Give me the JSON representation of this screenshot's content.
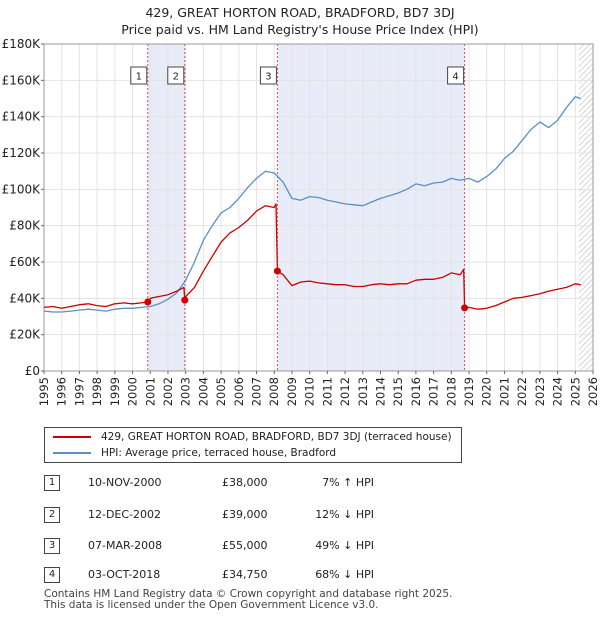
{
  "title_line1": "429, GREAT HORTON ROAD, BRADFORD, BD7 3DJ",
  "title_line2": "Price paid vs. HM Land Registry's House Price Index (HPI)",
  "colors": {
    "property": "#cc0000",
    "hpi": "#5b8fc7",
    "shade": "#e8ecf8",
    "marker_line": "#d9534f"
  },
  "chart_data": {
    "type": "line",
    "xlim": [
      1995,
      2026
    ],
    "ylim": [
      0,
      180000
    ],
    "y_ticks": [
      0,
      20000,
      40000,
      60000,
      80000,
      100000,
      120000,
      140000,
      160000,
      180000
    ],
    "y_tick_labels": [
      "£0",
      "£20K",
      "£40K",
      "£60K",
      "£80K",
      "£100K",
      "£120K",
      "£140K",
      "£160K",
      "£180K"
    ],
    "x_ticks": [
      1995,
      1996,
      1997,
      1998,
      1999,
      2000,
      2001,
      2002,
      2003,
      2004,
      2005,
      2006,
      2007,
      2008,
      2009,
      2010,
      2011,
      2012,
      2013,
      2014,
      2015,
      2016,
      2017,
      2018,
      2019,
      2020,
      2021,
      2022,
      2023,
      2024,
      2025,
      2026
    ],
    "hatch_from": 2025.2,
    "shaded_spans": [
      [
        2000.86,
        2002.95
      ],
      [
        2008.18,
        2018.75
      ]
    ],
    "sales": [
      {
        "label": "1",
        "x": 2000.86,
        "y": 38000
      },
      {
        "label": "2",
        "x": 2002.95,
        "y": 39000
      },
      {
        "label": "3",
        "x": 2008.18,
        "y": 55000
      },
      {
        "label": "4",
        "x": 2018.75,
        "y": 34750
      }
    ],
    "series": [
      {
        "name": "429, GREAT HORTON ROAD, BRADFORD, BD7 3DJ (terraced house)",
        "x": [
          1995.0,
          1995.5,
          1996.0,
          1996.5,
          1997.0,
          1997.5,
          1998.0,
          1998.5,
          1999.0,
          1999.5,
          2000.0,
          2000.5,
          2000.86,
          2001.0,
          2001.5,
          2002.0,
          2002.5,
          2002.9,
          2002.95,
          2003.0,
          2003.5,
          2004.0,
          2004.5,
          2005.0,
          2005.5,
          2006.0,
          2006.5,
          2007.0,
          2007.5,
          2008.0,
          2008.1,
          2008.18,
          2008.5,
          2009.0,
          2009.5,
          2010.0,
          2010.5,
          2011.0,
          2011.5,
          2012.0,
          2012.5,
          2013.0,
          2013.5,
          2014.0,
          2014.5,
          2015.0,
          2015.5,
          2016.0,
          2016.5,
          2017.0,
          2017.5,
          2018.0,
          2018.5,
          2018.7,
          2018.75,
          2019.0,
          2019.5,
          2020.0,
          2020.5,
          2021.0,
          2021.5,
          2022.0,
          2022.5,
          2023.0,
          2023.5,
          2024.0,
          2024.5,
          2025.0,
          2025.3
        ],
        "y": [
          35000,
          35500,
          34500,
          35500,
          36500,
          37000,
          36000,
          35500,
          37000,
          37500,
          37000,
          37500,
          38000,
          40000,
          41000,
          42000,
          44000,
          46000,
          39000,
          41000,
          46000,
          55000,
          63000,
          71000,
          76000,
          79000,
          83000,
          88000,
          91000,
          90000,
          92000,
          55000,
          53000,
          47000,
          49000,
          49500,
          48500,
          48000,
          47500,
          47500,
          46500,
          46500,
          47500,
          48000,
          47500,
          48000,
          48000,
          50000,
          50500,
          50500,
          51500,
          54000,
          53000,
          56000,
          34750,
          35000,
          34000,
          34500,
          36000,
          38000,
          40000,
          40500,
          41500,
          42500,
          44000,
          45000,
          46000,
          48000,
          47500
        ]
      },
      {
        "name": "HPI: Average price, terraced house, Bradford",
        "x": [
          1995.0,
          1995.5,
          1996.0,
          1996.5,
          1997.0,
          1997.5,
          1998.0,
          1998.5,
          1999.0,
          1999.5,
          2000.0,
          2000.5,
          2001.0,
          2001.5,
          2002.0,
          2002.5,
          2003.0,
          2003.5,
          2004.0,
          2004.5,
          2005.0,
          2005.5,
          2006.0,
          2006.5,
          2007.0,
          2007.5,
          2008.0,
          2008.5,
          2009.0,
          2009.5,
          2010.0,
          2010.5,
          2011.0,
          2011.5,
          2012.0,
          2012.5,
          2013.0,
          2013.5,
          2014.0,
          2014.5,
          2015.0,
          2015.5,
          2016.0,
          2016.5,
          2017.0,
          2017.5,
          2018.0,
          2018.5,
          2019.0,
          2019.5,
          2020.0,
          2020.5,
          2021.0,
          2021.5,
          2022.0,
          2022.5,
          2023.0,
          2023.5,
          2024.0,
          2024.5,
          2025.0,
          2025.3
        ],
        "y": [
          33000,
          32500,
          32500,
          33000,
          33500,
          34000,
          33500,
          33000,
          34000,
          34500,
          34500,
          35000,
          35500,
          37000,
          39500,
          43000,
          50000,
          60000,
          72000,
          80000,
          87000,
          90000,
          95000,
          101000,
          106000,
          110000,
          109000,
          104000,
          95000,
          94000,
          96000,
          95500,
          94000,
          93000,
          92000,
          91500,
          91000,
          93000,
          95000,
          96500,
          98000,
          100000,
          103000,
          102000,
          103500,
          104000,
          106000,
          105000,
          106000,
          104000,
          107000,
          111000,
          117000,
          121000,
          127000,
          133000,
          137000,
          134000,
          138000,
          145000,
          151000,
          150000
        ]
      }
    ]
  },
  "legend": [
    {
      "label": "429, GREAT HORTON ROAD, BRADFORD, BD7 3DJ (terraced house)",
      "color": "#cc0000"
    },
    {
      "label": "HPI: Average price, terraced house, Bradford",
      "color": "#5b8fc7"
    }
  ],
  "transactions": [
    {
      "num": "1",
      "date": "10-NOV-2000",
      "price": "£38,000",
      "hpi": "7% ↑ HPI"
    },
    {
      "num": "2",
      "date": "12-DEC-2002",
      "price": "£39,000",
      "hpi": "12% ↓ HPI"
    },
    {
      "num": "3",
      "date": "07-MAR-2008",
      "price": "£55,000",
      "hpi": "49% ↓ HPI"
    },
    {
      "num": "4",
      "date": "03-OCT-2018",
      "price": "£34,750",
      "hpi": "68% ↓ HPI"
    }
  ],
  "footer_line1": "Contains HM Land Registry data © Crown copyright and database right 2025.",
  "footer_line2": "This data is licensed under the Open Government Licence v3.0."
}
